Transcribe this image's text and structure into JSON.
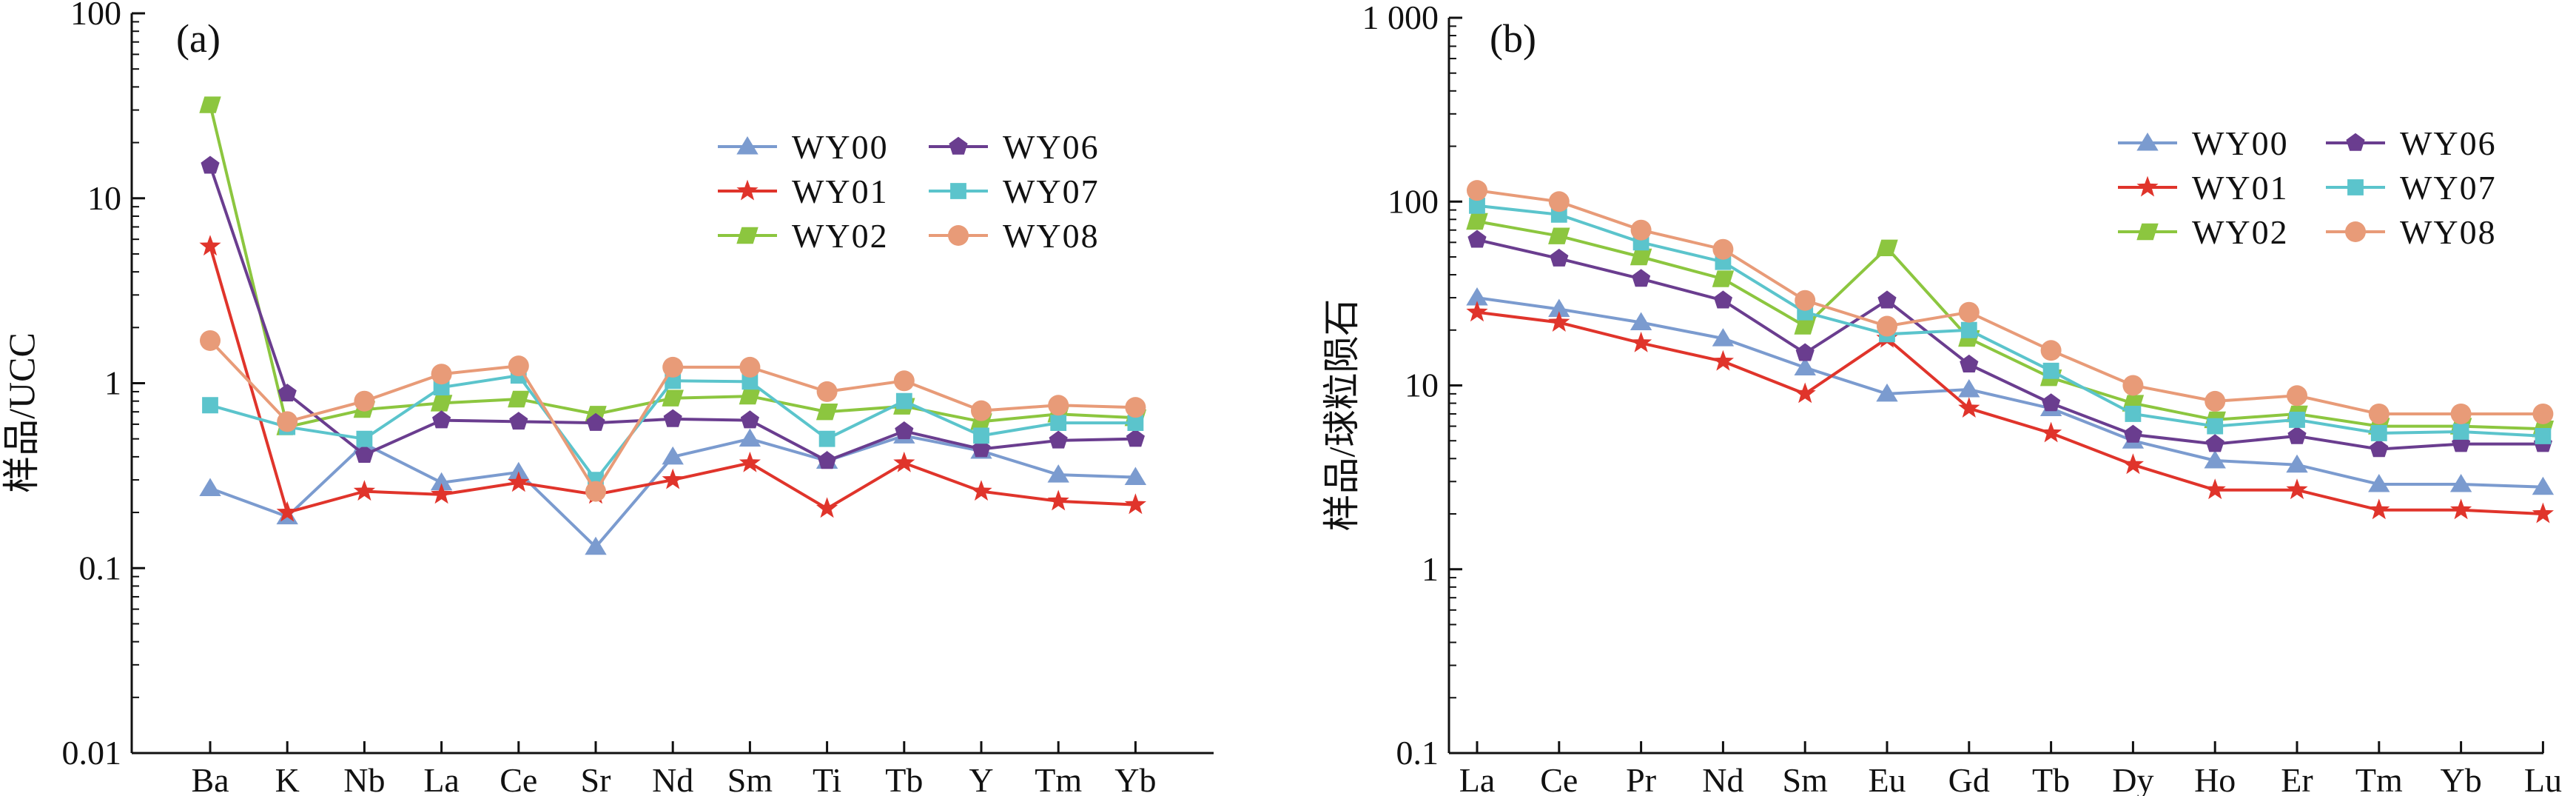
{
  "chart_data": [
    {
      "type": "line",
      "panel_label": "(a)",
      "ylabel": "样品/UCC",
      "y_scale": "log",
      "ylim": [
        0.01,
        100
      ],
      "yticks": [
        "0.01",
        "0.1",
        "1",
        "10",
        "100"
      ],
      "yticks_values": [
        0.01,
        0.1,
        1,
        10,
        100
      ],
      "categories": [
        "Ba",
        "K",
        "Nb",
        "La",
        "Ce",
        "Sr",
        "Nd",
        "Sm",
        "Ti",
        "Tb",
        "Y",
        "Tm",
        "Yb"
      ],
      "legend_position": "top-right",
      "series": [
        {
          "name": "WY00",
          "color": "#7b9bcf",
          "marker": "triangle",
          "values": [
            0.27,
            0.19,
            0.47,
            0.29,
            0.33,
            0.13,
            0.4,
            0.5,
            0.38,
            0.52,
            0.43,
            0.32,
            0.31
          ]
        },
        {
          "name": "WY01",
          "color": "#e0342b",
          "marker": "star",
          "values": [
            5.5,
            0.2,
            0.26,
            0.25,
            0.29,
            0.25,
            0.3,
            0.37,
            0.21,
            0.37,
            0.26,
            0.23,
            0.22
          ]
        },
        {
          "name": "WY02",
          "color": "#8cc63f",
          "marker": "parallelogram",
          "values": [
            32,
            0.58,
            0.72,
            0.78,
            0.82,
            0.68,
            0.83,
            0.85,
            0.7,
            0.75,
            0.62,
            0.68,
            0.65
          ]
        },
        {
          "name": "WY06",
          "color": "#6a3d8f",
          "marker": "pentagon",
          "values": [
            15,
            0.88,
            0.41,
            0.63,
            0.62,
            0.61,
            0.64,
            0.63,
            0.38,
            0.55,
            0.44,
            0.49,
            0.5
          ]
        },
        {
          "name": "WY07",
          "color": "#5bc4cc",
          "marker": "square",
          "values": [
            0.76,
            0.58,
            0.5,
            0.95,
            1.1,
            0.3,
            1.03,
            1.02,
            0.5,
            0.8,
            0.52,
            0.61,
            0.61
          ]
        },
        {
          "name": "WY08",
          "color": "#e89b78",
          "marker": "circle",
          "values": [
            1.7,
            0.62,
            0.8,
            1.12,
            1.24,
            0.26,
            1.22,
            1.22,
            0.9,
            1.03,
            0.71,
            0.76,
            0.74
          ]
        }
      ]
    },
    {
      "type": "line",
      "panel_label": "(b)",
      "ylabel": "样品/球粒陨石",
      "y_scale": "log",
      "ylim": [
        0.1,
        1000
      ],
      "yticks": [
        "0.1",
        "1",
        "10",
        "100",
        "1 000"
      ],
      "yticks_values": [
        0.1,
        1,
        10,
        100,
        1000
      ],
      "categories": [
        "La",
        "Ce",
        "Pr",
        "Nd",
        "Sm",
        "Eu",
        "Gd",
        "Tb",
        "Dy",
        "Ho",
        "Er",
        "Tm",
        "Yb",
        "Lu"
      ],
      "legend_position": "top-right",
      "series": [
        {
          "name": "WY00",
          "color": "#7b9bcf",
          "marker": "triangle",
          "values": [
            30,
            26,
            22,
            18,
            12.5,
            9,
            9.5,
            7.5,
            5,
            3.9,
            3.7,
            2.9,
            2.9,
            2.8
          ]
        },
        {
          "name": "WY01",
          "color": "#e0342b",
          "marker": "star",
          "values": [
            25,
            22,
            17,
            13.5,
            9,
            18,
            7.5,
            5.5,
            3.7,
            2.7,
            2.7,
            2.1,
            2.1,
            2.0
          ]
        },
        {
          "name": "WY02",
          "color": "#8cc63f",
          "marker": "parallelogram",
          "values": [
            78,
            65,
            50,
            38,
            21,
            56,
            18,
            11,
            8,
            6.5,
            7,
            6,
            6,
            5.8
          ]
        },
        {
          "name": "WY06",
          "color": "#6a3d8f",
          "marker": "pentagon",
          "values": [
            62,
            49,
            38,
            29,
            15,
            29,
            13,
            8,
            5.4,
            4.8,
            5.3,
            4.5,
            4.8,
            4.8
          ]
        },
        {
          "name": "WY07",
          "color": "#5bc4cc",
          "marker": "square",
          "values": [
            95,
            85,
            60,
            47,
            25,
            19,
            20,
            12,
            7,
            6,
            6.5,
            5.5,
            5.6,
            5.3
          ]
        },
        {
          "name": "WY08",
          "color": "#e89b78",
          "marker": "circle",
          "values": [
            115,
            100,
            70,
            55,
            29,
            21,
            25,
            15.5,
            10,
            8.2,
            8.8,
            7,
            7,
            7
          ]
        }
      ]
    }
  ]
}
